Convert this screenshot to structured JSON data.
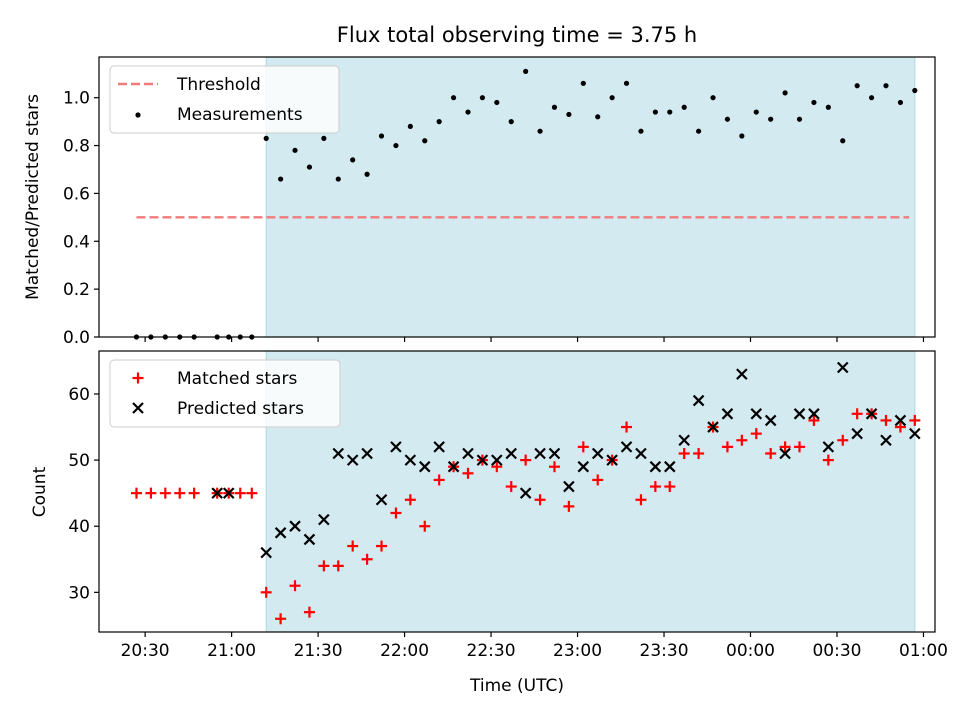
{
  "title": "Flux total observing time = 3.75 h",
  "xlabel": "Time (UTC)",
  "x_ticks": [
    {
      "t": -30,
      "label": "20:30"
    },
    {
      "t": 0,
      "label": "21:00"
    },
    {
      "t": 30,
      "label": "21:30"
    },
    {
      "t": 60,
      "label": "22:00"
    },
    {
      "t": 90,
      "label": "22:30"
    },
    {
      "t": 120,
      "label": "23:00"
    },
    {
      "t": 150,
      "label": "23:30"
    },
    {
      "t": 180,
      "label": "00:00"
    },
    {
      "t": 210,
      "label": "00:30"
    },
    {
      "t": 240,
      "label": "01:00"
    }
  ],
  "colors": {
    "shade": "#d4eaf1",
    "threshold": "#f07b7b",
    "matched": "#ff0000",
    "predicted": "#000000"
  },
  "chart_data": [
    {
      "type": "scatter",
      "title": "Flux total observing time = 3.75 h",
      "ylabel": "Matched/Predicted stars",
      "xlabel": "",
      "x_unit": "minutes after 21:00 UTC",
      "xlim": [
        -46,
        244
      ],
      "ylim": [
        0,
        1.17
      ],
      "y_ticks": [
        0.0,
        0.2,
        0.4,
        0.6,
        0.8,
        1.0
      ],
      "y_tick_labels": [
        "0.0",
        "0.2",
        "0.4",
        "0.6",
        "0.8",
        "1.0"
      ],
      "shaded_region": [
        12,
        237
      ],
      "legend": {
        "placement": "top-left",
        "entries": [
          "Threshold",
          "Measurements"
        ]
      },
      "threshold": {
        "name": "Threshold",
        "value": 0.5,
        "x_range": [
          -33,
          235
        ]
      },
      "series": [
        {
          "name": "Measurements",
          "x": [
            -33,
            -28,
            -23,
            -18,
            -13,
            -5,
            -1,
            3,
            7,
            12,
            17,
            22,
            27,
            32,
            37,
            42,
            47,
            52,
            57,
            62,
            67,
            72,
            77,
            82,
            87,
            92,
            97,
            102,
            107,
            112,
            117,
            122,
            127,
            132,
            137,
            142,
            147,
            152,
            157,
            162,
            167,
            172,
            177,
            182,
            187,
            192,
            197,
            202,
            207,
            212,
            217,
            222,
            227,
            232,
            237
          ],
          "y": [
            0.0,
            0.0,
            0.0,
            0.0,
            0.0,
            0.0,
            0.0,
            0.0,
            0.0,
            0.83,
            0.66,
            0.78,
            0.71,
            0.83,
            0.66,
            0.74,
            0.68,
            0.84,
            0.8,
            0.88,
            0.82,
            0.9,
            1.0,
            0.94,
            1.0,
            0.98,
            0.9,
            1.11,
            0.86,
            0.96,
            0.93,
            1.06,
            0.92,
            1.0,
            1.06,
            0.86,
            0.94,
            0.94,
            0.96,
            0.86,
            1.0,
            0.91,
            0.84,
            0.94,
            0.91,
            1.02,
            0.91,
            0.98,
            0.96,
            0.82,
            1.05,
            1.0,
            1.05,
            0.98,
            1.03
          ]
        }
      ]
    },
    {
      "type": "scatter",
      "ylabel": "Count",
      "xlabel": "Time (UTC)",
      "x_unit": "minutes after 21:00 UTC",
      "xlim": [
        -46,
        244
      ],
      "ylim": [
        24,
        66.5
      ],
      "y_ticks": [
        30,
        40,
        50,
        60
      ],
      "y_tick_labels": [
        "30",
        "40",
        "50",
        "60"
      ],
      "shaded_region": [
        12,
        237
      ],
      "legend": {
        "placement": "top-left",
        "entries": [
          "Matched stars",
          "Predicted stars"
        ]
      },
      "series": [
        {
          "name": "Matched stars",
          "marker": "+",
          "x": [
            -33,
            -28,
            -23,
            -18,
            -13,
            -5,
            -1,
            3,
            7,
            12,
            17,
            22,
            27,
            32,
            37,
            42,
            47,
            52,
            57,
            62,
            67,
            72,
            77,
            82,
            87,
            92,
            97,
            102,
            107,
            112,
            117,
            122,
            127,
            132,
            137,
            142,
            147,
            152,
            157,
            162,
            167,
            172,
            177,
            182,
            187,
            192,
            197,
            202,
            207,
            212,
            217,
            222,
            227,
            232,
            237
          ],
          "y": [
            45,
            45,
            45,
            45,
            45,
            45,
            45,
            45,
            45,
            30,
            26,
            31,
            27,
            34,
            34,
            37,
            35,
            37,
            42,
            44,
            40,
            47,
            49,
            48,
            50,
            49,
            46,
            50,
            44,
            49,
            43,
            52,
            47,
            50,
            55,
            44,
            46,
            46,
            51,
            51,
            55,
            52,
            53,
            54,
            51,
            52,
            52,
            56,
            50,
            53,
            57,
            57,
            56,
            55,
            56
          ]
        },
        {
          "name": "Predicted stars",
          "marker": "x",
          "x": [
            -5,
            -1,
            12,
            17,
            22,
            27,
            32,
            37,
            42,
            47,
            52,
            57,
            62,
            67,
            72,
            77,
            82,
            87,
            92,
            97,
            102,
            107,
            112,
            117,
            122,
            127,
            132,
            137,
            142,
            147,
            152,
            157,
            162,
            167,
            172,
            177,
            182,
            187,
            192,
            197,
            202,
            207,
            212,
            217,
            222,
            227,
            232,
            237
          ],
          "y": [
            45,
            45,
            36,
            39,
            40,
            38,
            41,
            51,
            50,
            51,
            44,
            52,
            50,
            49,
            52,
            49,
            51,
            50,
            50,
            51,
            45,
            51,
            51,
            46,
            49,
            51,
            50,
            52,
            51,
            49,
            49,
            53,
            59,
            55,
            57,
            63,
            57,
            56,
            51,
            57,
            57,
            52,
            64,
            54,
            57,
            53,
            56,
            54
          ]
        }
      ]
    }
  ]
}
